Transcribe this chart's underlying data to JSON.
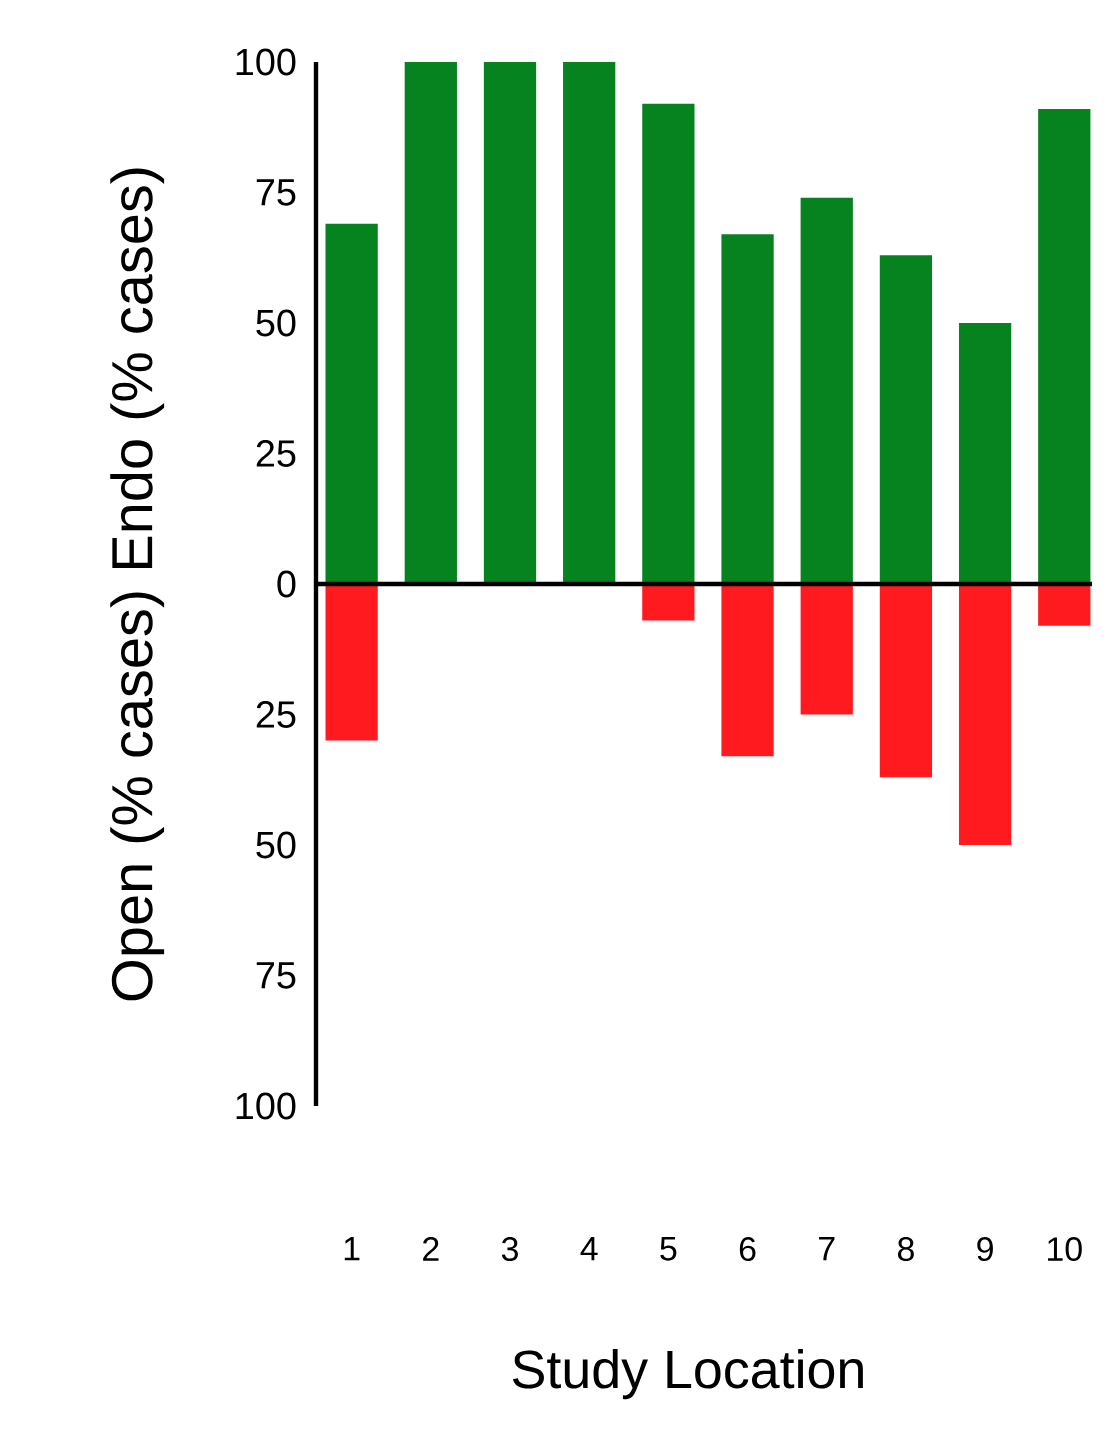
{
  "chart_data": {
    "type": "bar",
    "xlabel": "Study Location",
    "ylabel": "Open (% cases) Endo (% cases)",
    "categories": [
      "1",
      "2",
      "3",
      "4",
      "5",
      "6",
      "7",
      "8",
      "9",
      "10"
    ],
    "stacked": true,
    "series": [
      {
        "color": "#06821f",
        "values": [
          69,
          100,
          100,
          100,
          92,
          67,
          74,
          63,
          50,
          91
        ]
      },
      {
        "color": "#fe1a1e",
        "values": [
          -30,
          0,
          0,
          0,
          -7,
          -33,
          -25,
          -37,
          -50,
          -8
        ]
      }
    ],
    "ylim": [
      -100,
      100
    ],
    "yticks": [
      {
        "value": -100,
        "label": "100"
      },
      {
        "value": -75,
        "label": "75"
      },
      {
        "value": -50,
        "label": "50"
      },
      {
        "value": -25,
        "label": "25"
      },
      0,
      25,
      50,
      75,
      100
    ]
  }
}
